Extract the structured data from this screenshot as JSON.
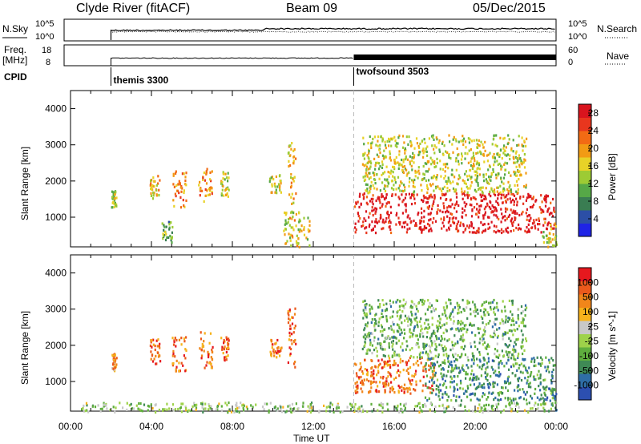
{
  "header": {
    "station": "Clyde River (fitACF)",
    "beam": "Beam 09",
    "date": "05/Dec/2015"
  },
  "params": {
    "nsky_label": "N.Sky",
    "nsky_ticks": [
      "10^5",
      "10^0"
    ],
    "nsearch_label": "N.Search",
    "nsearch_ticks": [
      "10^5",
      "10^0"
    ],
    "freq_label": "Freq.",
    "freq_unit": "[MHz]",
    "freq_ticks": [
      "18",
      "8"
    ],
    "nave_label": "Nave",
    "nave_ticks": [
      "60",
      "0"
    ],
    "cpid_label": "CPID",
    "cpid_segments": [
      {
        "name": "themis 3300",
        "start_hour": 2
      },
      {
        "name": "twofsound 3503",
        "start_hour": 14
      }
    ]
  },
  "chart_data": [
    {
      "type": "heatmap",
      "quantity": "Power",
      "ylabel": "Slant Range [km]",
      "xlabel": "Time UT",
      "xlim_hours": [
        0,
        24
      ],
      "ylim_km": [
        180,
        4500
      ],
      "y_ticks": [
        "1000",
        "2000",
        "3000",
        "4000"
      ],
      "x_ticks": [
        "00:00",
        "04:00",
        "08:00",
        "12:00",
        "16:00",
        "20:00",
        "00:00"
      ],
      "colorbar": {
        "label": "Power [dB]",
        "ticks": [
          "4",
          "8",
          "12",
          "16",
          "20",
          "24",
          "28"
        ],
        "range": [
          0,
          30
        ],
        "colors": [
          "#1f24e6",
          "#2c4fa6",
          "#3a7d52",
          "#56a847",
          "#9dcb34",
          "#e8d227",
          "#f29b14",
          "#f26b14",
          "#e8361e",
          "#d9141e"
        ]
      },
      "scatter_patches": [
        {
          "t0": 2.0,
          "t1": 2.25,
          "r0": 1300,
          "r1": 1800,
          "level": 0.5
        },
        {
          "t0": 3.9,
          "t1": 4.4,
          "r0": 1500,
          "r1": 2200,
          "level": 0.6
        },
        {
          "t0": 5.0,
          "t1": 5.7,
          "r0": 1300,
          "r1": 2300,
          "level": 0.7
        },
        {
          "t0": 6.3,
          "t1": 7.0,
          "r0": 1400,
          "r1": 2400,
          "level": 0.7
        },
        {
          "t0": 7.4,
          "t1": 7.8,
          "r0": 1600,
          "r1": 2300,
          "level": 0.5
        },
        {
          "t0": 9.8,
          "t1": 10.4,
          "r0": 1700,
          "r1": 2200,
          "level": 0.55
        },
        {
          "t0": 10.7,
          "t1": 11.1,
          "r0": 1400,
          "r1": 3100,
          "level": 0.6
        },
        {
          "t0": 14.0,
          "t1": 23.9,
          "r0": 600,
          "r1": 1700,
          "level": 0.95
        },
        {
          "t0": 14.4,
          "t1": 22.5,
          "r0": 1700,
          "r1": 3300,
          "level": 0.5
        },
        {
          "t0": 4.5,
          "t1": 5.0,
          "r0": 300,
          "r1": 900,
          "level": 0.35
        },
        {
          "t0": 10.5,
          "t1": 11.8,
          "r0": 200,
          "r1": 1200,
          "level": 0.55
        },
        {
          "t0": 23.3,
          "t1": 24.0,
          "r0": 200,
          "r1": 900,
          "level": 0.5
        }
      ]
    },
    {
      "type": "heatmap",
      "quantity": "Velocity",
      "ylabel": "Slant Range [km]",
      "xlabel": "Time UT",
      "xlim_hours": [
        0,
        24
      ],
      "ylim_km": [
        180,
        4500
      ],
      "y_ticks": [
        "1000",
        "2000",
        "3000",
        "4000"
      ],
      "x_ticks": [
        "00:00",
        "04:00",
        "08:00",
        "12:00",
        "16:00",
        "20:00",
        "00:00"
      ],
      "colorbar": {
        "label": "Velocity [m s^-1]",
        "ticks": [
          "1000",
          "500",
          "100",
          "25",
          "-25",
          "-100",
          "-500",
          "-1000"
        ],
        "colors": [
          "#2c4fb0",
          "#2f6ea6",
          "#3f8a55",
          "#5fae3e",
          "#9ed24a",
          "#c8c8c8",
          "#f6b21c",
          "#f1861a",
          "#eb5a1c",
          "#e6181e"
        ]
      },
      "scatter_patches": [
        {
          "t0": 2.0,
          "t1": 2.25,
          "r0": 1300,
          "r1": 1800,
          "level": 0.72
        },
        {
          "t0": 3.9,
          "t1": 4.4,
          "r0": 1500,
          "r1": 2200,
          "level": 0.8
        },
        {
          "t0": 5.0,
          "t1": 5.7,
          "r0": 1300,
          "r1": 2300,
          "level": 0.8
        },
        {
          "t0": 6.3,
          "t1": 7.0,
          "r0": 1400,
          "r1": 2400,
          "level": 0.8
        },
        {
          "t0": 7.4,
          "t1": 7.8,
          "r0": 1600,
          "r1": 2300,
          "level": 0.8
        },
        {
          "t0": 9.8,
          "t1": 10.4,
          "r0": 1700,
          "r1": 2200,
          "level": 0.8
        },
        {
          "t0": 10.7,
          "t1": 11.1,
          "r0": 1400,
          "r1": 3100,
          "level": 0.8
        },
        {
          "t0": 14.0,
          "t1": 18.0,
          "r0": 700,
          "r1": 1700,
          "level": 0.8
        },
        {
          "t0": 17.5,
          "t1": 23.9,
          "r0": 500,
          "r1": 1700,
          "level": 0.25
        },
        {
          "t0": 14.4,
          "t1": 22.5,
          "r0": 1700,
          "r1": 3300,
          "level": 0.35
        },
        {
          "t0": 0.5,
          "t1": 24.0,
          "r0": 180,
          "r1": 450,
          "level": 0.45
        },
        {
          "t0": 23.3,
          "t1": 24.0,
          "r0": 200,
          "r1": 900,
          "level": 0.25
        }
      ]
    }
  ]
}
